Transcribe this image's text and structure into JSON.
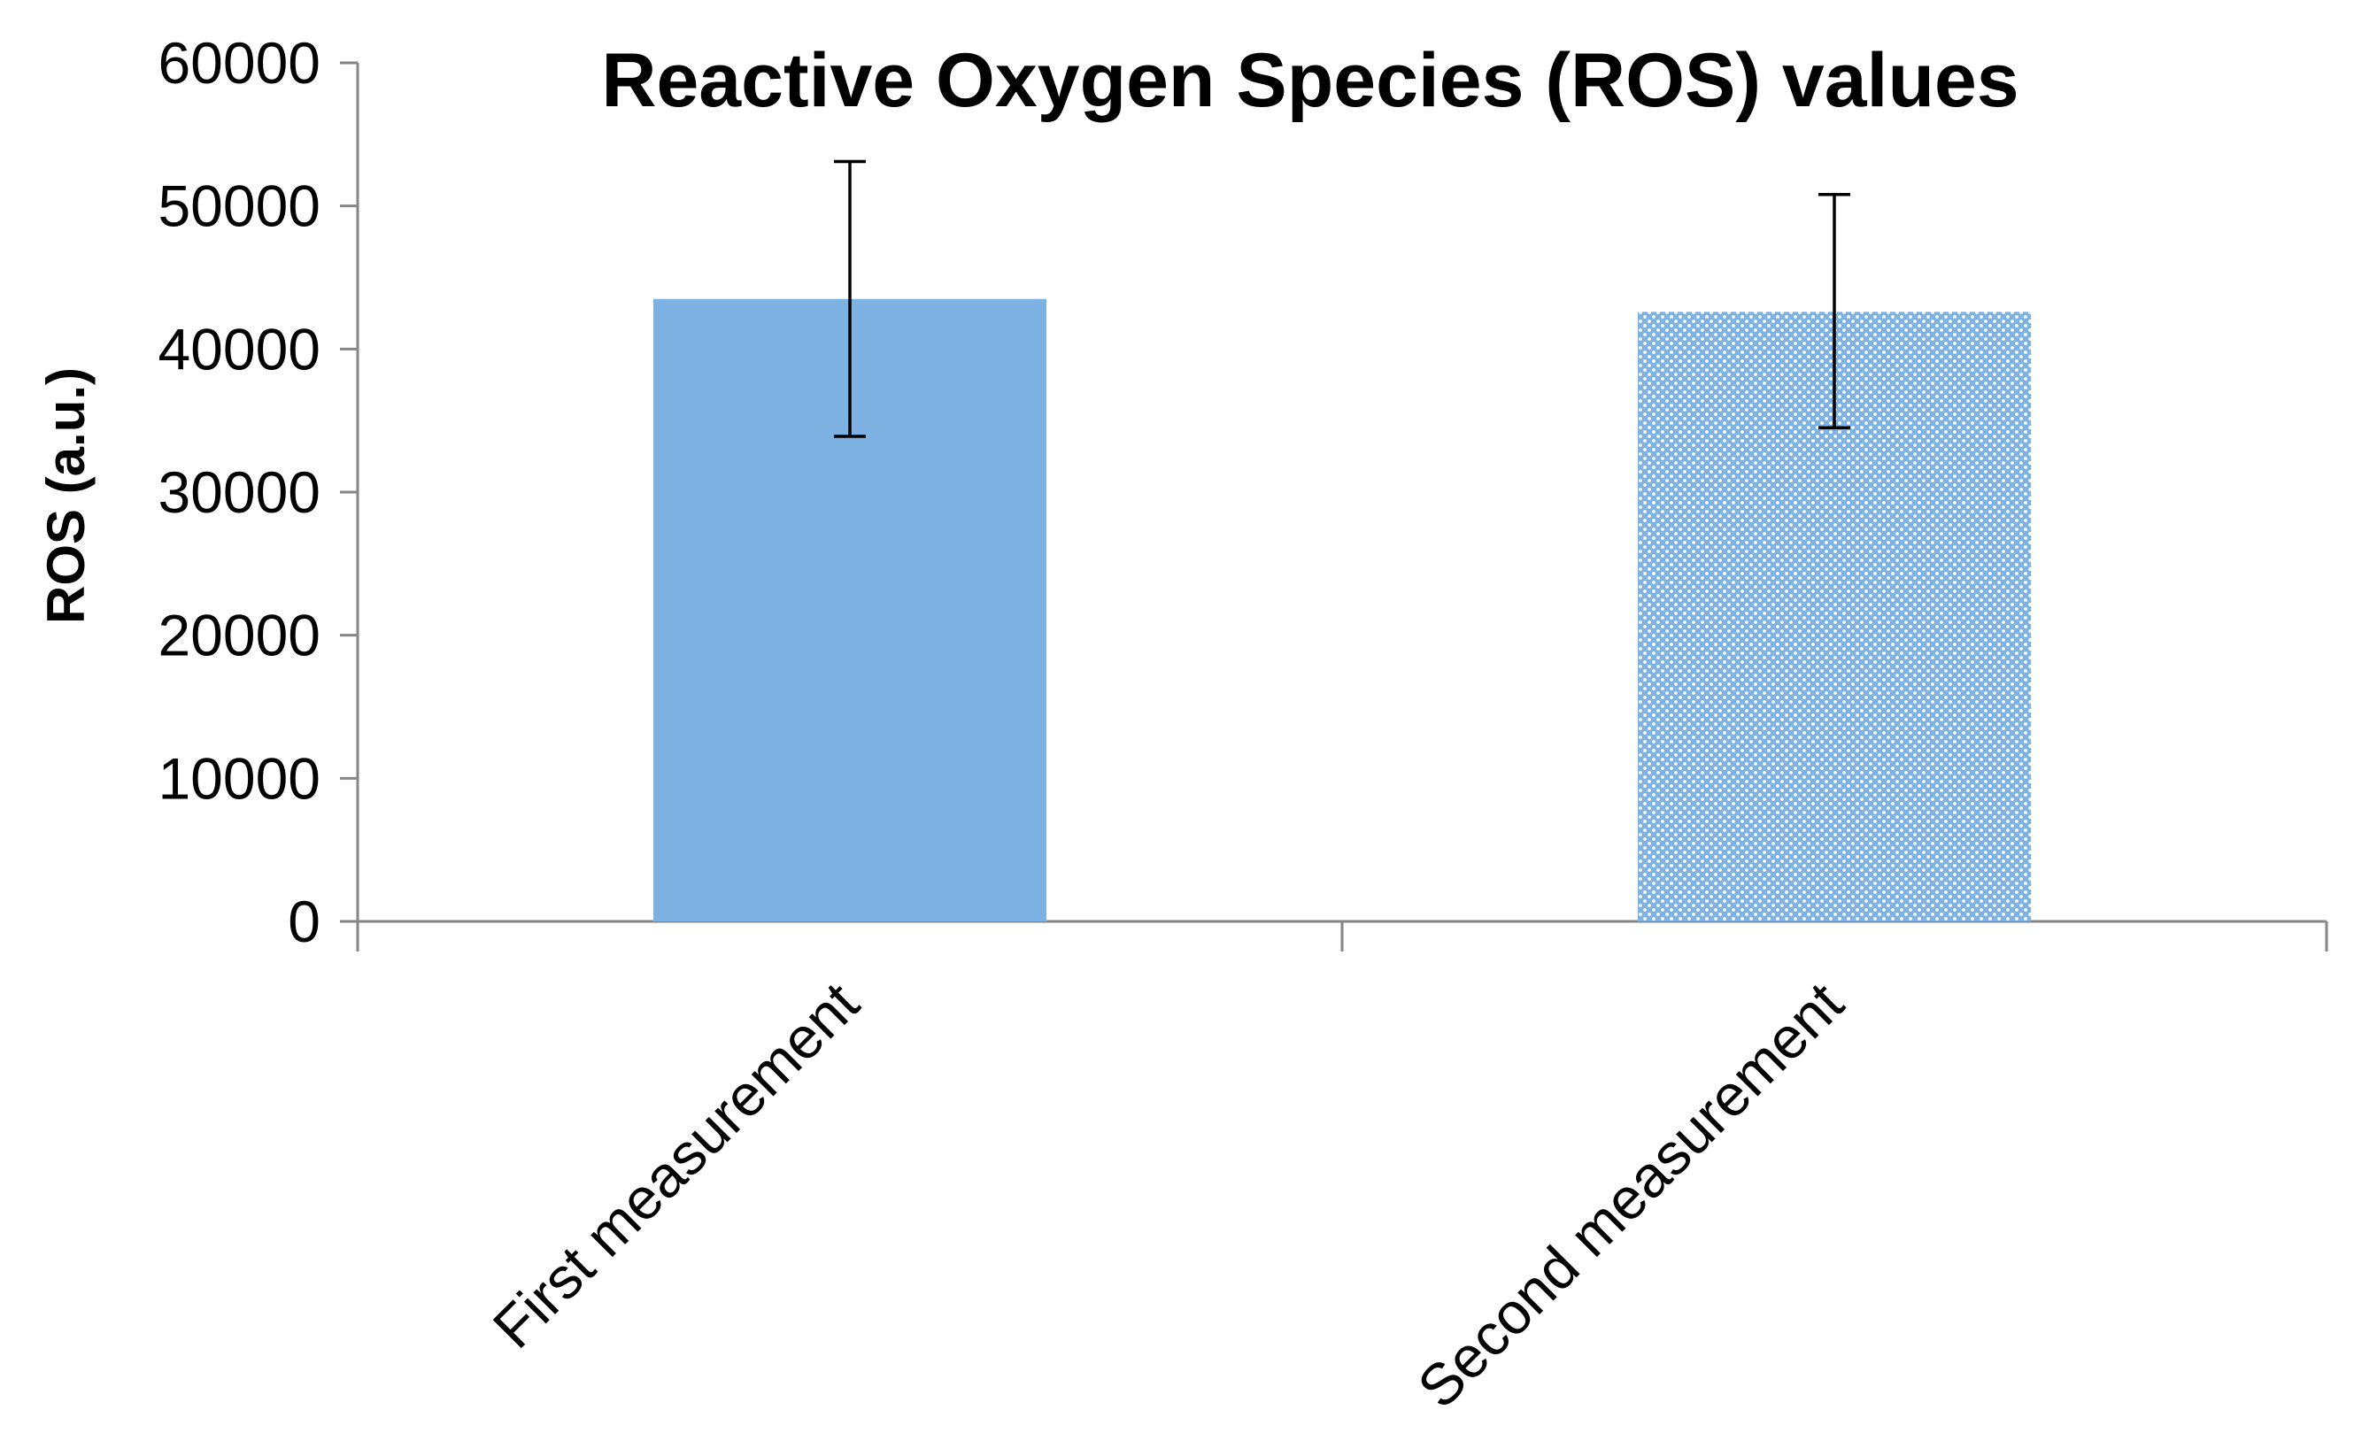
{
  "chart_data": {
    "type": "bar",
    "title": "Reactive Oxygen Species (ROS) values",
    "xlabel": "",
    "ylabel": "ROS (a.u.)",
    "categories": [
      "First measurement",
      "Second measurement"
    ],
    "values": [
      43500,
      42600
    ],
    "error_bars": [
      {
        "low": 33900,
        "high": 53100
      },
      {
        "low": 34500,
        "high": 50800
      }
    ],
    "ylim": [
      0,
      60000
    ],
    "yticks": [
      0,
      10000,
      20000,
      30000,
      40000,
      50000,
      60000
    ],
    "ytick_labels": [
      "0",
      "10000",
      "20000",
      "30000",
      "40000",
      "50000",
      "60000"
    ],
    "bar_styles": [
      "solid",
      "dotted"
    ],
    "bar_color": "#7EB2E3",
    "axis_color": "#868686",
    "grid": false,
    "legend": "none"
  }
}
